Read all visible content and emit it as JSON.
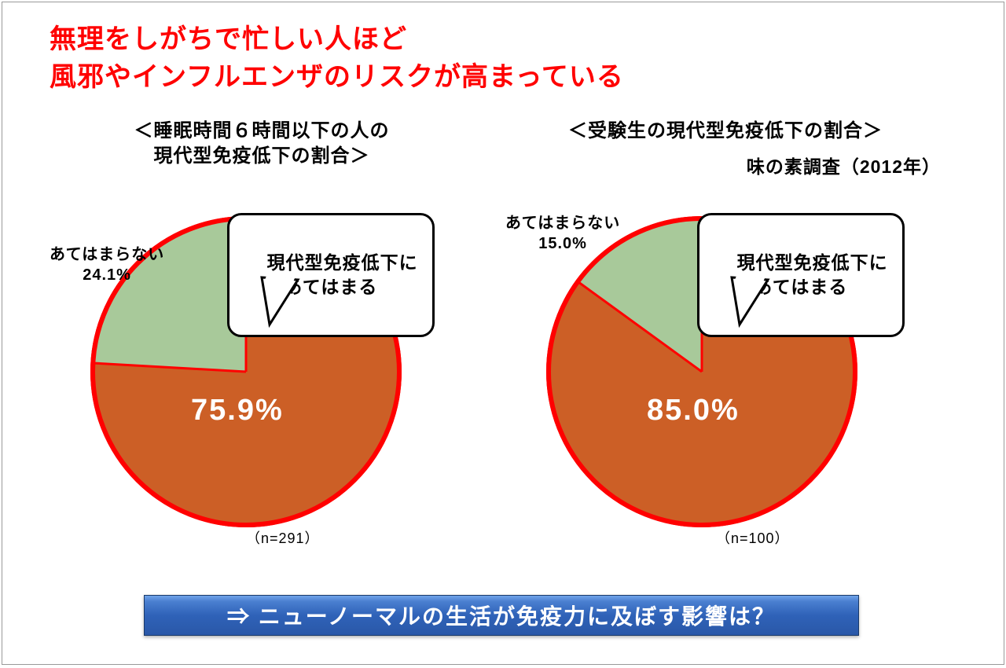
{
  "title_line1": "無理をしがちで忙しい人ほど",
  "title_line2": "風邪やインフルエンザのリスクが高まっている",
  "source": "味の素調査（2012年）",
  "pie_style": {
    "radius": 195,
    "border_color": "#ff0000",
    "border_width": 6,
    "slice_yes_color": "#cc5f26",
    "slice_no_color": "#a8c99a",
    "divider_color": "#ff0000",
    "divider_width": 3,
    "value_text_color": "#ffffff",
    "value_fontsize": 38,
    "callout_bg": "#ffffff",
    "callout_border": "#000000",
    "callout_border_width": 3
  },
  "chart_left": {
    "title": "＜睡眠時間６時間以下の人の\n現代型免疫低下の割合＞",
    "yes_label": "現代型免疫低下に\nあてはまる",
    "yes_value_text": "75.9%",
    "yes_value": 75.9,
    "no_label": "あてはまらない\n24.1%",
    "no_value": 24.1,
    "n_label": "（n=291）"
  },
  "chart_right": {
    "title": "＜受験生の現代型免疫低下の割合＞",
    "yes_label": "現代型免疫低下に\nあてはまる",
    "yes_value_text": "85.0%",
    "yes_value": 85.0,
    "no_label": "あてはまらない\n15.0%",
    "no_value": 15.0,
    "n_label": "（n=100）"
  },
  "bottom_text": "⇒ ニューノーマルの生活が免疫力に及ぼす影響は？"
}
